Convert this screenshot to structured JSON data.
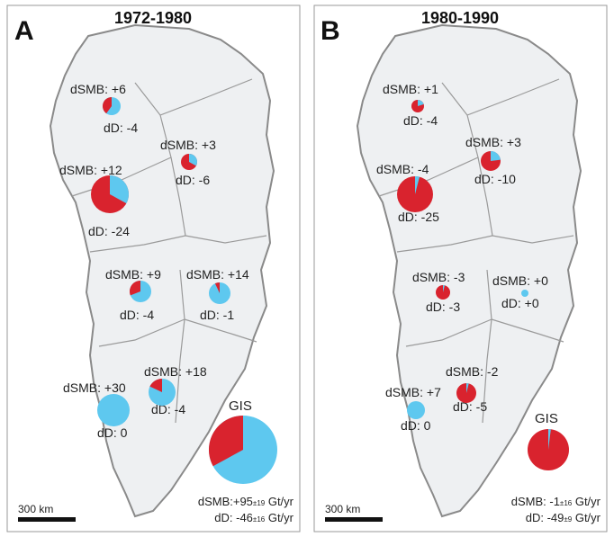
{
  "colors": {
    "smb": "#5ec8ef",
    "discharge": "#d9232e",
    "land": "#eef0f2",
    "coast": "#8a8a8a",
    "ridge": "#9a9a9a"
  },
  "panels": [
    {
      "letter": "A",
      "title": "1972-1980",
      "basins": [
        {
          "smb": "dSMB: +6",
          "dd": "dD: -4",
          "smb_frac": 0.6
        },
        {
          "smb": "dSMB: +3",
          "dd": "dD: -6",
          "smb_frac": 0.33
        },
        {
          "smb": "dSMB: +12",
          "dd": "dD: -24",
          "smb_frac": 0.33
        },
        {
          "smb": "dSMB: +9",
          "dd": "dD: -4",
          "smb_frac": 0.69
        },
        {
          "smb": "dSMB: +14",
          "dd": "dD: -1",
          "smb_frac": 0.93
        },
        {
          "smb": "dSMB: +30",
          "dd": "dD: 0",
          "smb_frac": 1.0
        },
        {
          "smb": "dSMB: +18",
          "dd": "dD: -4",
          "smb_frac": 0.82
        }
      ],
      "gis": {
        "label": "GIS",
        "smb_frac": 0.67
      },
      "total_smb": {
        "prefix": "dSMB:+95",
        "unc": "±19",
        "unit": " Gt/yr"
      },
      "total_dd": {
        "prefix": "dD: -46",
        "unc": "±16",
        "unit": " Gt/yr"
      },
      "scale": "300 km"
    },
    {
      "letter": "B",
      "title": "1980-1990",
      "basins": [
        {
          "smb": "dSMB: +1",
          "dd": "dD: -4",
          "smb_frac": 0.2
        },
        {
          "smb": "dSMB: +3",
          "dd": "dD: -10",
          "smb_frac": 0.23
        },
        {
          "smb": "dSMB: -4",
          "dd": "dD: -25",
          "smb_frac": 0.04
        },
        {
          "smb": "dSMB: -3",
          "dd": "dD: -3",
          "smb_frac": 0.04
        },
        {
          "smb": "dSMB: +0",
          "dd": "dD: +0",
          "smb_frac": 1.0
        },
        {
          "smb": "dSMB: -2",
          "dd": "dD: -5",
          "smb_frac": 0.04
        },
        {
          "smb": "dSMB: +7",
          "dd": "dD: 0",
          "smb_frac": 1.0
        }
      ],
      "gis": {
        "label": "GIS",
        "smb_frac": 0.02
      },
      "total_smb": {
        "prefix": "dSMB: -1",
        "unc": "±16",
        "unit": " Gt/yr"
      },
      "total_dd": {
        "prefix": "dD: -49",
        "unc": "±9",
        "unit": " Gt/yr"
      },
      "scale": "300 km"
    }
  ]
}
